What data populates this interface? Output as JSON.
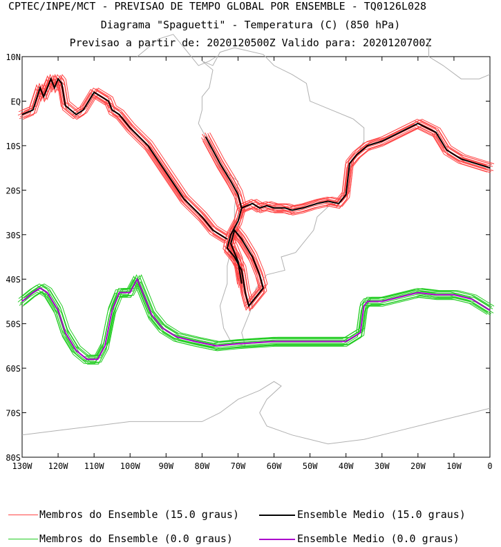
{
  "header": {
    "line1": "CPTEC/INPE/MCT - PREVISAO DE TEMPO GLOBAL POR ENSEMBLE - TQ0126L028",
    "line2": "Diagrama \"Spaguetti\" - Temperatura (C) (850 hPa)",
    "line3": "Previsao a partir de: 2020120500Z  Valido para: 2020120700Z"
  },
  "colors": {
    "member_15": "#ff4444",
    "mean_15": "#000000",
    "member_0": "#22cc22",
    "mean_0": "#aa00cc",
    "coast": "#b0b0b0"
  },
  "chart_data": {
    "type": "line",
    "map": "South America / South Atlantic / Eastern Pacific",
    "xlim": [
      -130,
      0
    ],
    "ylim": [
      -80,
      10
    ],
    "x_ticks": [
      "130W",
      "120W",
      "110W",
      "100W",
      "90W",
      "80W",
      "70W",
      "60W",
      "50W",
      "40W",
      "30W",
      "20W",
      "10W",
      "0"
    ],
    "y_ticks": [
      "10N",
      "EQ",
      "10S",
      "20S",
      "30S",
      "40S",
      "50S",
      "60S",
      "70S",
      "80S"
    ],
    "series": [
      {
        "name": "Ensemble Medio (15.0 graus)",
        "note": "Pacific branch",
        "lon": [
          -130,
          -127,
          -125,
          -124,
          -122,
          -121,
          -120,
          -119,
          -118,
          -115,
          -113,
          -110,
          -106,
          -105,
          -103,
          -100,
          -95,
          -90,
          -85,
          -80,
          -77,
          -75,
          -73
        ],
        "lat": [
          -3,
          -2,
          3,
          1,
          5,
          3,
          5,
          4,
          -1,
          -3,
          -2,
          2,
          0,
          -2,
          -3,
          -6,
          -10,
          -16,
          -22,
          -26,
          -29,
          -30,
          -31
        ]
      },
      {
        "name": "Ensemble Medio (15.0 graus)",
        "note": "South America loop",
        "lon": [
          -79,
          -77,
          -75,
          -72,
          -70,
          -69,
          -70,
          -72,
          -73,
          -71,
          -69,
          -68,
          -67,
          -66,
          -65,
          -63,
          -64,
          -66,
          -69,
          -71,
          -72,
          -70,
          -69
        ],
        "lat": [
          -8,
          -11,
          -14,
          -18,
          -21,
          -24,
          -27,
          -30,
          -33,
          -35,
          -38,
          -43,
          -46,
          -45,
          -44,
          -42,
          -39,
          -35,
          -31,
          -29,
          -32,
          -36,
          -41
        ]
      },
      {
        "name": "Ensemble Medio (15.0 graus)",
        "note": "Southeast Brazil / Atlantic branch",
        "lon": [
          -69,
          -66,
          -64,
          -62,
          -60,
          -57,
          -55,
          -52,
          -48,
          -45,
          -42,
          -40,
          -39,
          -37,
          -34,
          -30,
          -25,
          -20,
          -15,
          -12,
          -8,
          -4,
          0
        ],
        "lat": [
          -24,
          -23,
          -24,
          -23.5,
          -24,
          -24,
          -24.5,
          -24,
          -23,
          -22.5,
          -23,
          -21,
          -14,
          -12,
          -10,
          -9,
          -7,
          -5,
          -7,
          -11,
          -13,
          -14,
          -15
        ]
      },
      {
        "name": "Ensemble Medio (0.0 graus)",
        "lon": [
          -130,
          -127,
          -125,
          -123,
          -120,
          -118,
          -115,
          -112,
          -109,
          -107,
          -105,
          -103,
          -100,
          -98,
          -96,
          -94,
          -91,
          -87,
          -82,
          -76,
          -70,
          -60,
          -50,
          -40,
          -36,
          -35,
          -34,
          -30,
          -25,
          -20,
          -15,
          -10,
          -5,
          0
        ],
        "lat": [
          -45,
          -43,
          -42,
          -43,
          -47,
          -52,
          -56,
          -58,
          -58,
          -55,
          -47,
          -43,
          -43,
          -40,
          -44,
          -48,
          -51,
          -53,
          -54,
          -55,
          -54.5,
          -54,
          -54,
          -54,
          -52,
          -46,
          -45,
          -45,
          -44,
          -43,
          -43.5,
          -43.5,
          -44.5,
          -47
        ]
      }
    ]
  },
  "legend": {
    "items": [
      {
        "label": "Membros do Ensemble (15.0 graus)"
      },
      {
        "label": "Ensemble Medio (15.0 graus)"
      },
      {
        "label": "Membros do Ensemble (0.0 graus)"
      },
      {
        "label": "Ensemble Medio (0.0 graus)"
      }
    ]
  }
}
